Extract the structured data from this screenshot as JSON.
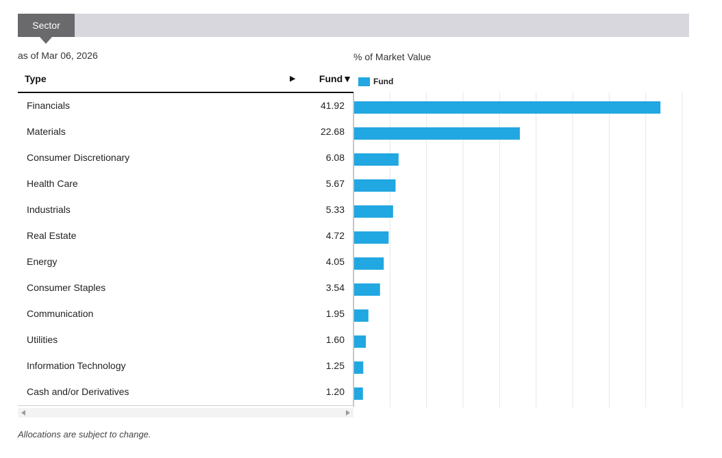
{
  "tabs": [
    {
      "label": "Sector"
    }
  ],
  "as_of": "as of Mar 06, 2026",
  "table": {
    "type_header": "Type",
    "fund_header": "Fund",
    "sort_arrow": "▶",
    "sort_indicator": "▼"
  },
  "chart_data": {
    "type": "bar",
    "orientation": "horizontal",
    "title": "% of Market Value",
    "categories": [
      "Financials",
      "Materials",
      "Consumer Discretionary",
      "Health Care",
      "Industrials",
      "Real Estate",
      "Energy",
      "Consumer Staples",
      "Communication",
      "Utilities",
      "Information Technology",
      "Cash and/or Derivatives"
    ],
    "series": [
      {
        "name": "Fund",
        "values": [
          41.92,
          22.68,
          6.08,
          5.67,
          5.33,
          4.72,
          4.05,
          3.54,
          1.95,
          1.6,
          1.25,
          1.2
        ],
        "labels": [
          "41.92",
          "22.68",
          "6.08",
          "5.67",
          "5.33",
          "4.72",
          "4.05",
          "3.54",
          "1.95",
          "1.60",
          "1.25",
          "1.20"
        ],
        "color": "#21a7e1"
      }
    ],
    "xlim": [
      0,
      45
    ],
    "grid": true,
    "legend": "top-left"
  },
  "note": "Allocations are subject to change.",
  "colors": {
    "bar": "#21a7e1",
    "tab": "#6a6a6c",
    "tabbar": "#d8d7de",
    "grid": "#e6e6e6"
  }
}
